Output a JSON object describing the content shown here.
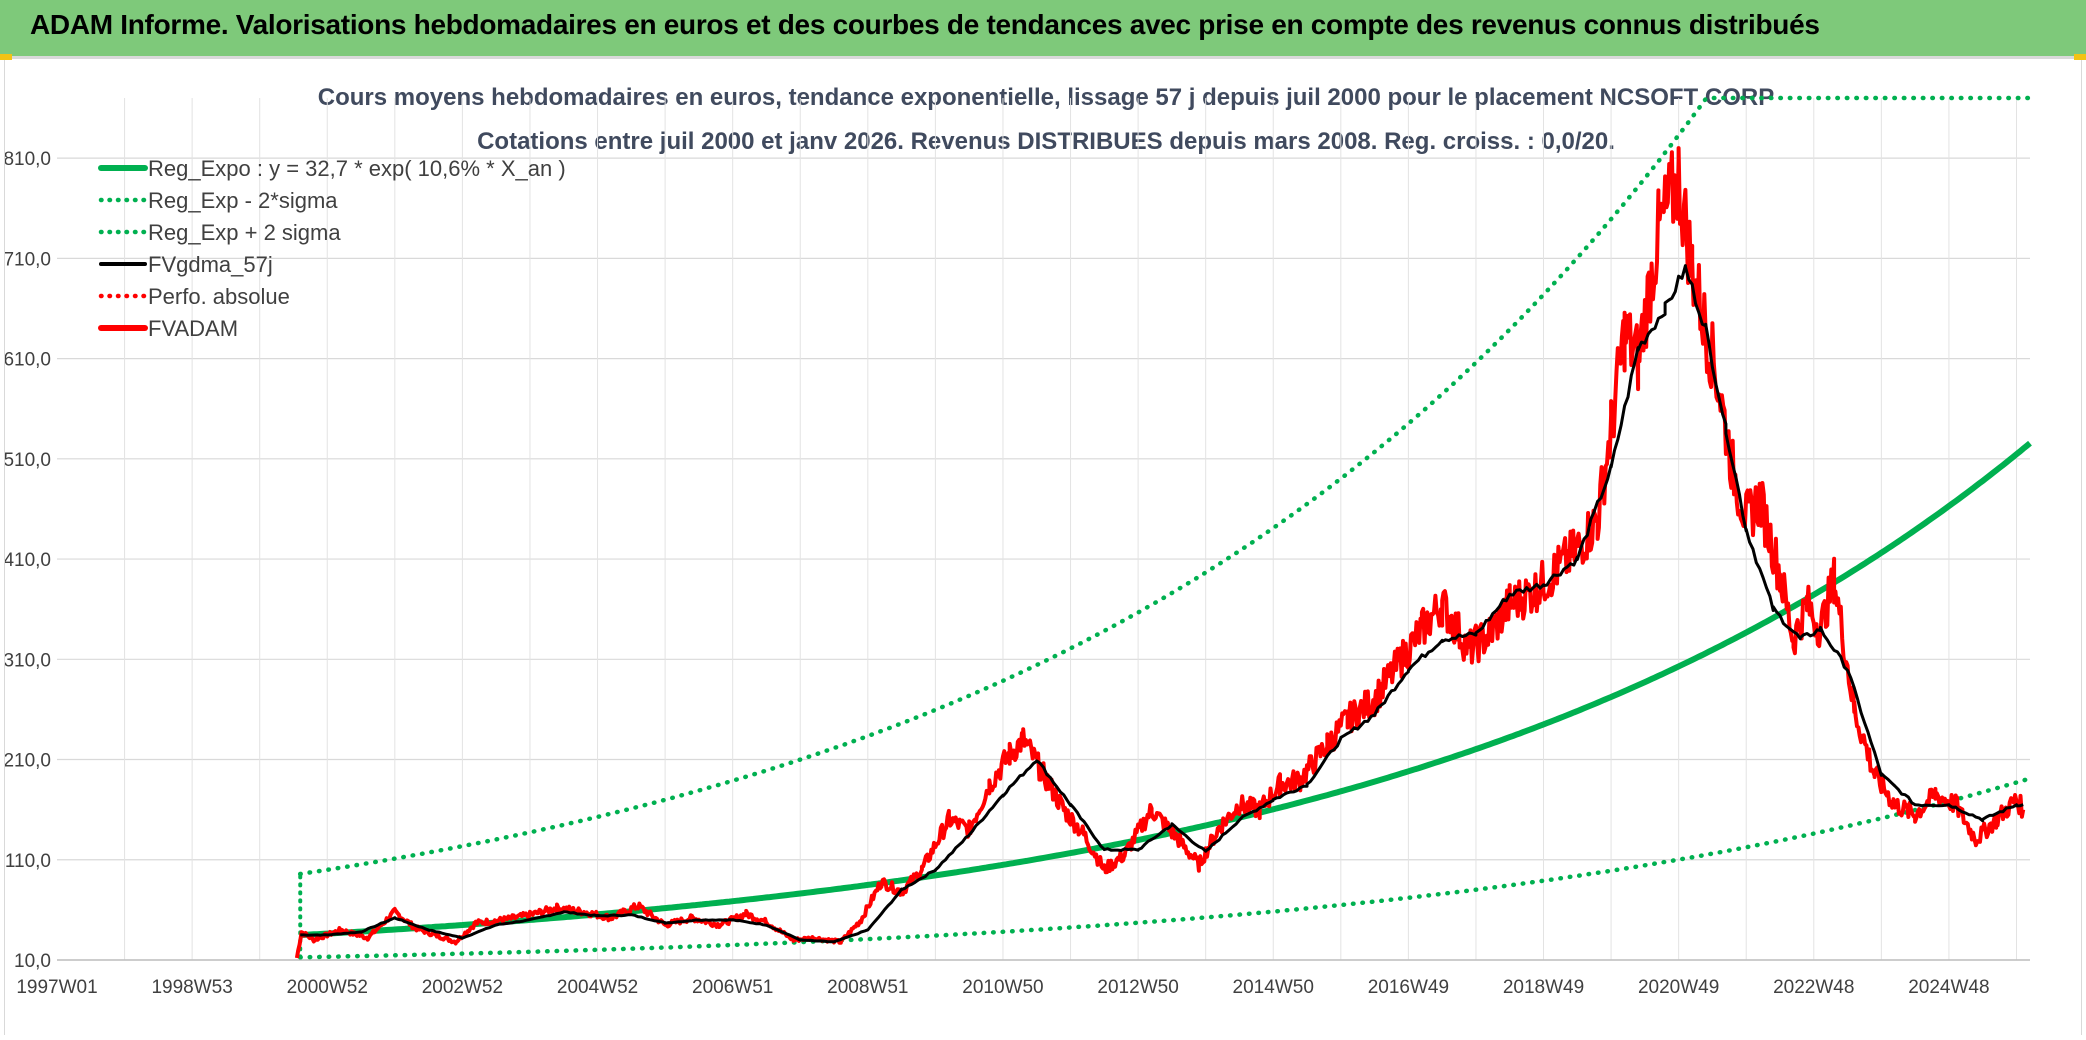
{
  "header": {
    "title": "ADAM Informe. Valorisations hebdomadaires en euros et des courbes de tendances avec prise en compte des revenus connus distribués"
  },
  "chart_data": {
    "type": "line",
    "title_line1": "Cours moyens hebdomadaires en euros, tendance exponentielle, lissage 57 j depuis juil 2000 pour le placement NCSOFT CORP",
    "title_line2": "Cotations entre juil 2000 et janv 2026. Revenus DISTRIBUES depuis mars 2008. Reg. croiss. : 0,0/20.",
    "ylim": [
      10,
      870
    ],
    "xlim": [
      1997.0,
      2026.2
    ],
    "y_ticks": [
      "10,0",
      "110,0",
      "210,0",
      "310,0",
      "410,0",
      "510,0",
      "610,0",
      "710,0",
      "810,0"
    ],
    "y_tick_values": [
      10,
      110,
      210,
      310,
      410,
      510,
      610,
      710,
      810
    ],
    "x_ticks": [
      "1997W01",
      "1998W53",
      "2000W52",
      "2002W52",
      "2004W52",
      "2006W51",
      "2008W51",
      "2010W50",
      "2012W50",
      "2014W50",
      "2016W49",
      "2018W49",
      "2020W49",
      "2022W48",
      "2024W48"
    ],
    "x_tick_values": [
      1997.0,
      1999.0,
      2001.0,
      2003.0,
      2005.0,
      2007.0,
      2009.0,
      2011.0,
      2013.0,
      2015.0,
      2017.0,
      2019.0,
      2021.0,
      2023.0,
      2025.0
    ],
    "legend": [
      {
        "label": "Reg_Expo : y = 32,7 * exp( 10,6% *  X_an )",
        "color": "#00b050",
        "style": "solid-thick"
      },
      {
        "label": "Reg_Exp - 2*sigma",
        "color": "#00b050",
        "style": "dotted"
      },
      {
        "label": "Reg_Exp + 2 sigma",
        "color": "#00b050",
        "style": "dotted"
      },
      {
        "label": "FVgdma_57j",
        "color": "#000000",
        "style": "solid"
      },
      {
        "label": "Perfo. absolue",
        "color": "#ff0000",
        "style": "dotted"
      },
      {
        "label": "FVADAM",
        "color": "#ff0000",
        "style": "solid-thick"
      }
    ],
    "regression": {
      "start": 2000.6,
      "end": 2026.2,
      "a": 32.7,
      "rate": 0.106,
      "sigma_factor": 2.75,
      "cap": 870
    },
    "series_fvadam": {
      "name": "FVADAM",
      "color": "#ff0000",
      "x": [
        2000.55,
        2000.62,
        2000.8,
        2001.2,
        2001.6,
        2002.0,
        2002.3,
        2002.6,
        2002.9,
        2003.2,
        2003.6,
        2004.0,
        2004.4,
        2004.8,
        2005.2,
        2005.6,
        2006.0,
        2006.4,
        2006.8,
        2007.2,
        2007.5,
        2007.9,
        2008.2,
        2008.6,
        2008.9,
        2009.2,
        2009.5,
        2009.8,
        2010.2,
        2010.5,
        2010.8,
        2011.1,
        2011.3,
        2011.6,
        2011.9,
        2012.2,
        2012.5,
        2012.8,
        2013.2,
        2013.6,
        2013.9,
        2014.2,
        2014.5,
        2014.8,
        2015.1,
        2015.4,
        2015.8,
        2016.1,
        2016.5,
        2016.9,
        2017.2,
        2017.5,
        2017.9,
        2018.2,
        2018.5,
        2018.9,
        2019.2,
        2019.5,
        2019.8,
        2020.0,
        2020.2,
        2020.4,
        2020.7,
        2021.0,
        2021.2,
        2021.4,
        2021.6,
        2021.8,
        2022.0,
        2022.2,
        2022.5,
        2022.7,
        2022.9,
        2023.1,
        2023.3,
        2023.6,
        2023.9,
        2024.2,
        2024.5,
        2024.8,
        2025.1,
        2025.4,
        2025.7,
        2026.0,
        2026.1
      ],
      "y": [
        12,
        38,
        30,
        40,
        32,
        58,
        42,
        35,
        28,
        47,
        50,
        55,
        62,
        58,
        52,
        64,
        45,
        52,
        45,
        56,
        48,
        30,
        32,
        28,
        50,
        88,
        78,
        100,
        150,
        140,
        185,
        215,
        230,
        195,
        160,
        135,
        100,
        115,
        160,
        130,
        105,
        142,
        165,
        160,
        185,
        190,
        225,
        250,
        270,
        310,
        340,
        365,
        320,
        335,
        365,
        380,
        400,
        420,
        450,
        540,
        635,
        610,
        735,
        790,
        700,
        640,
        580,
        500,
        450,
        470,
        395,
        330,
        365,
        340,
        390,
        260,
        195,
        165,
        155,
        175,
        165,
        130,
        150,
        170,
        160
      ]
    },
    "series_fvgdma": {
      "name": "FVgdma_57j",
      "color": "#000000",
      "x": [
        2000.6,
        2001.0,
        2001.5,
        2002.0,
        2002.5,
        2003.0,
        2003.5,
        2004.0,
        2004.5,
        2005.0,
        2005.5,
        2006.0,
        2006.5,
        2007.0,
        2007.5,
        2008.0,
        2008.5,
        2009.0,
        2009.5,
        2010.0,
        2010.5,
        2011.0,
        2011.5,
        2012.0,
        2012.5,
        2013.0,
        2013.5,
        2014.0,
        2014.5,
        2015.0,
        2015.5,
        2016.0,
        2016.5,
        2017.0,
        2017.5,
        2018.0,
        2018.5,
        2019.0,
        2019.5,
        2020.0,
        2020.4,
        2020.8,
        2021.1,
        2021.4,
        2021.7,
        2022.0,
        2022.4,
        2022.8,
        2023.1,
        2023.5,
        2024.0,
        2024.5,
        2025.0,
        2025.5,
        2026.0,
        2026.1
      ],
      "y": [
        35,
        35,
        38,
        52,
        40,
        32,
        45,
        50,
        58,
        54,
        55,
        47,
        50,
        50,
        45,
        30,
        28,
        40,
        80,
        100,
        135,
        175,
        210,
        165,
        120,
        120,
        145,
        118,
        150,
        170,
        185,
        230,
        255,
        300,
        330,
        335,
        375,
        385,
        410,
        500,
        620,
        660,
        700,
        640,
        540,
        440,
        360,
        330,
        340,
        300,
        195,
        165,
        165,
        150,
        165,
        165
      ]
    }
  }
}
